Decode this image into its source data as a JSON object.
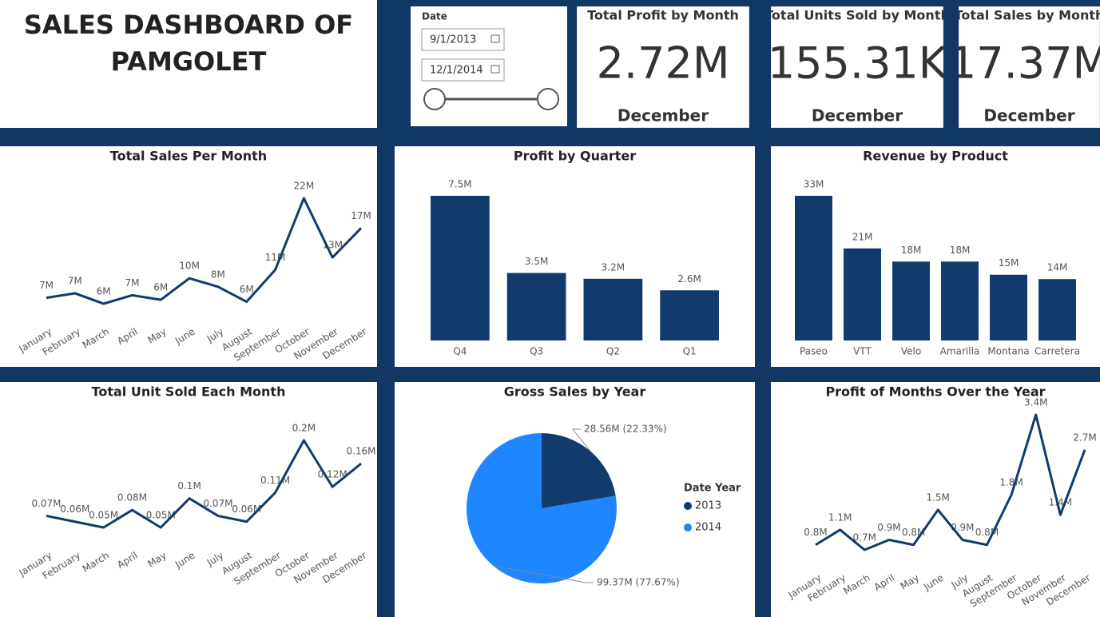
{
  "header": {
    "title": "SALES DASHBOARD OF PAMGOLET"
  },
  "slicer": {
    "label": "Date",
    "start": "9/1/2013",
    "end": "12/1/2014"
  },
  "cards": [
    {
      "title": "Total Profit by Month",
      "value": "2.72M",
      "period": "December"
    },
    {
      "title": "Total Units Sold by Month",
      "value": "155.31K",
      "period": "December"
    },
    {
      "title": "Total Sales by Month",
      "value": "17.37M",
      "period": "December"
    }
  ],
  "chart_data": [
    {
      "type": "line",
      "title": "Total Sales Per Month",
      "color": "#123b6d",
      "categories": [
        "January",
        "February",
        "March",
        "April",
        "May",
        "June",
        "July",
        "August",
        "September",
        "October",
        "November",
        "December"
      ],
      "values": [
        6.7,
        7.4,
        5.8,
        7.1,
        6.4,
        9.7,
        8.4,
        6.1,
        11.0,
        22.0,
        12.9,
        17.4
      ],
      "value_labels": [
        "7M",
        "7M",
        "6M",
        "7M",
        "6M",
        "10M",
        "8M",
        "6M",
        "11M",
        "22M",
        "13M",
        "17M"
      ]
    },
    {
      "type": "bar",
      "title": "Profit by Quarter",
      "color": "#123b6d",
      "categories": [
        "Q4",
        "Q3",
        "Q2",
        "Q1"
      ],
      "values": [
        7.5,
        3.5,
        3.2,
        2.6
      ],
      "value_labels": [
        "7.5M",
        "3.5M",
        "3.2M",
        "2.6M"
      ]
    },
    {
      "type": "bar",
      "title": "Revenue by Product",
      "color": "#123b6d",
      "categories": [
        "Paseo",
        "VTT",
        "Velo",
        "Amarilla",
        "Montana",
        "Carretera"
      ],
      "values": [
        33,
        21,
        18,
        18,
        15,
        14
      ],
      "value_labels": [
        "33M",
        "21M",
        "18M",
        "18M",
        "15M",
        "14M"
      ]
    },
    {
      "type": "line",
      "title": "Total Unit Sold Each Month",
      "color": "#123b6d",
      "categories": [
        "January",
        "February",
        "March",
        "April",
        "May",
        "June",
        "July",
        "August",
        "September",
        "October",
        "November",
        "December"
      ],
      "values": [
        0.07,
        0.06,
        0.05,
        0.08,
        0.05,
        0.1,
        0.07,
        0.06,
        0.11,
        0.2,
        0.12,
        0.16
      ],
      "value_labels": [
        "0.07M",
        "0.06M",
        "0.05M",
        "0.08M",
        "0.05M",
        "0.1M",
        "0.07M",
        "0.06M",
        "0.11M",
        "0.2M",
        "0.12M",
        "0.16M"
      ]
    },
    {
      "type": "pie",
      "title": "Gross Sales by Year",
      "legend_title": "Date Year",
      "categories": [
        "2013",
        "2014"
      ],
      "colors": [
        "#123b6d",
        "#1e86ff"
      ],
      "values": [
        28.56,
        99.37
      ],
      "value_labels": [
        "28.56M (22.33%)",
        "99.37M (77.67%)"
      ]
    },
    {
      "type": "line",
      "title": "Profit of Months Over the Year",
      "color": "#123b6d",
      "categories": [
        "January",
        "February",
        "March",
        "April",
        "May",
        "June",
        "July",
        "August",
        "September",
        "October",
        "November",
        "December"
      ],
      "values": [
        0.8,
        1.1,
        0.7,
        0.9,
        0.8,
        1.5,
        0.9,
        0.8,
        1.8,
        3.4,
        1.4,
        2.7
      ],
      "value_labels": [
        "0.8M",
        "1.1M",
        "0.7M",
        "0.9M",
        "0.8M",
        "1.5M",
        "0.9M",
        "0.8M",
        "1.8M",
        "3.4M",
        "1.4M",
        "2.7M"
      ]
    }
  ]
}
